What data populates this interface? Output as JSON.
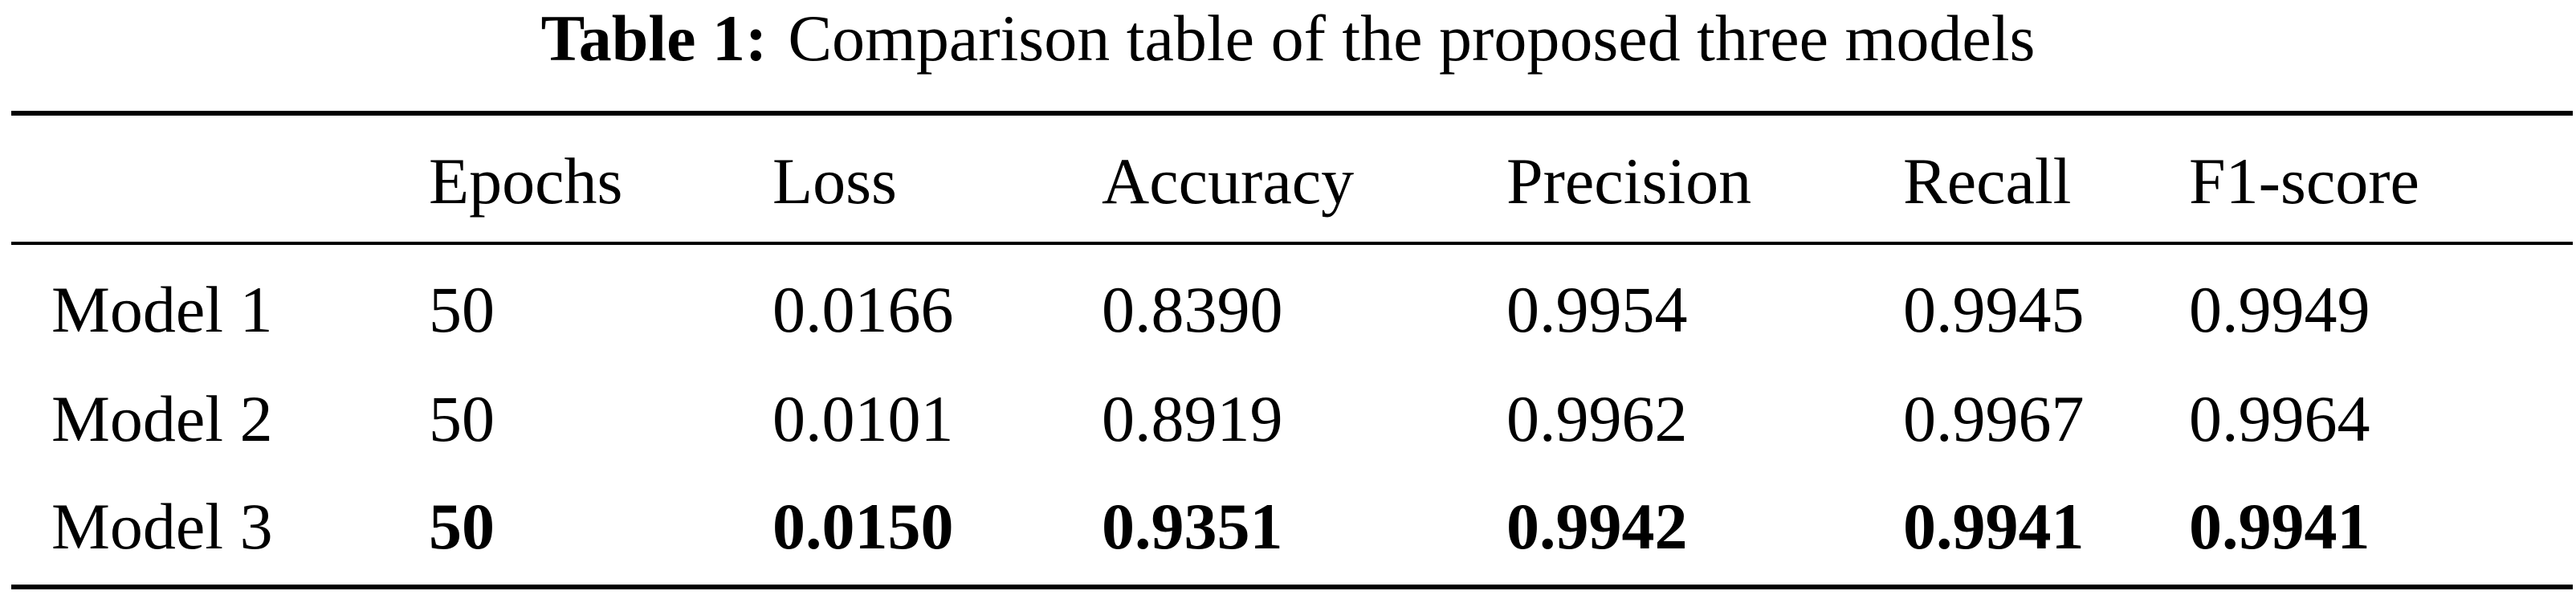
{
  "caption": {
    "label": "Table 1:",
    "text": "Comparison table of the proposed three models"
  },
  "table": {
    "headers": [
      "",
      "Epochs",
      "Loss",
      "Accuracy",
      "Precision",
      "Recall",
      "F1-score"
    ],
    "rows": [
      [
        "Model 1",
        "50",
        "0.0166",
        "0.8390",
        "0.9954",
        "0.9945",
        "0.9949"
      ],
      [
        "Model 2",
        "50",
        "0.0101",
        "0.8919",
        "0.9962",
        "0.9967",
        "0.9964"
      ],
      [
        "Model 3",
        "50",
        "0.0150",
        "0.9351",
        "0.9942",
        "0.9941",
        "0.9941"
      ]
    ]
  }
}
